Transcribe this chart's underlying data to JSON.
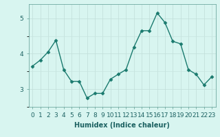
{
  "x": [
    0,
    1,
    2,
    3,
    4,
    5,
    6,
    7,
    8,
    9,
    10,
    11,
    12,
    13,
    14,
    15,
    16,
    17,
    18,
    19,
    20,
    21,
    22,
    23
  ],
  "y": [
    3.65,
    3.82,
    4.05,
    4.38,
    3.55,
    3.22,
    3.22,
    2.75,
    2.88,
    2.88,
    3.28,
    3.42,
    3.55,
    4.18,
    4.65,
    4.65,
    5.15,
    4.88,
    4.35,
    4.28,
    3.55,
    3.42,
    3.12,
    3.35
  ],
  "line_color": "#1a7a6e",
  "marker": "D",
  "markersize": 2.5,
  "linewidth": 1.0,
  "background_color": "#d8f5f0",
  "grid_color_major": "#c0ddd8",
  "grid_color_minor": "#c8e5e0",
  "xlabel": "Humidex (Indice chaleur)",
  "xlabel_fontsize": 7,
  "yticks": [
    3,
    4,
    5
  ],
  "xtick_labels": [
    "0",
    "1",
    "2",
    "3",
    "4",
    "5",
    "6",
    "7",
    "8",
    "9",
    "10",
    "11",
    "12",
    "13",
    "14",
    "15",
    "16",
    "17",
    "18",
    "19",
    "20",
    "21",
    "22",
    "23"
  ],
  "ylim": [
    2.5,
    5.4
  ],
  "xlim": [
    -0.5,
    23.5
  ],
  "tick_fontsize": 6.5,
  "grid_linewidth": 0.5,
  "spine_color": "#5a9a90"
}
